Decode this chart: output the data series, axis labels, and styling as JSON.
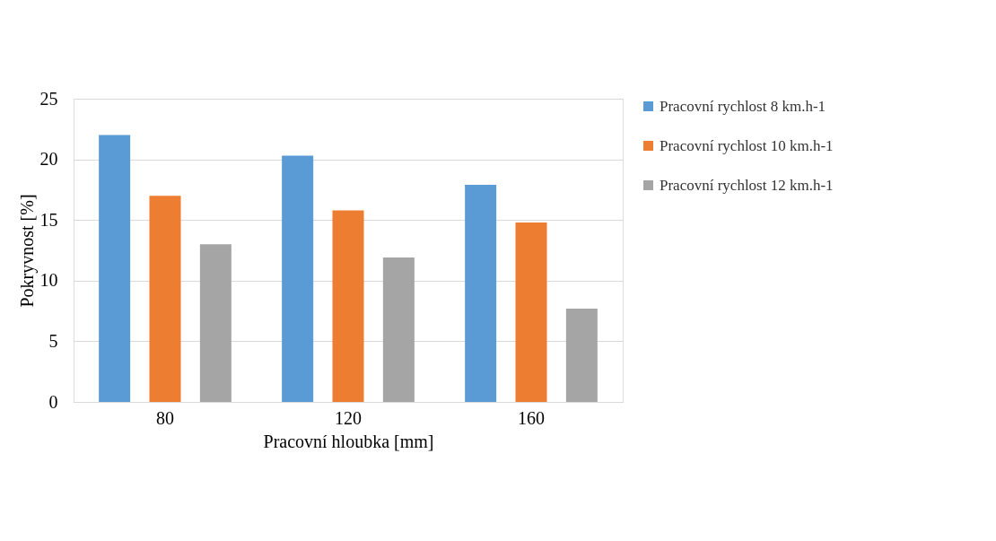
{
  "chart_data": {
    "type": "bar",
    "xlabel": "Pracovní hloubka [mm]",
    "ylabel": "Pokryvnost [%]",
    "categories": [
      "80",
      "120",
      "160"
    ],
    "series": [
      {
        "name": "Pracovní rychlost 8 km.h-1",
        "color": "#5b9bd5",
        "values": [
          22.0,
          20.3,
          17.9
        ]
      },
      {
        "name": "Pracovní rychlost 10 km.h-1",
        "color": "#ed7d31",
        "values": [
          17.0,
          15.8,
          14.8
        ]
      },
      {
        "name": "Pracovní rychlost 12 km.h-1",
        "color": "#a5a5a5",
        "values": [
          13.0,
          11.9,
          7.7
        ]
      }
    ],
    "ylim": [
      0,
      25
    ],
    "yticks": [
      0,
      5,
      10,
      15,
      20,
      25
    ],
    "grid": "y",
    "legend": "right"
  }
}
